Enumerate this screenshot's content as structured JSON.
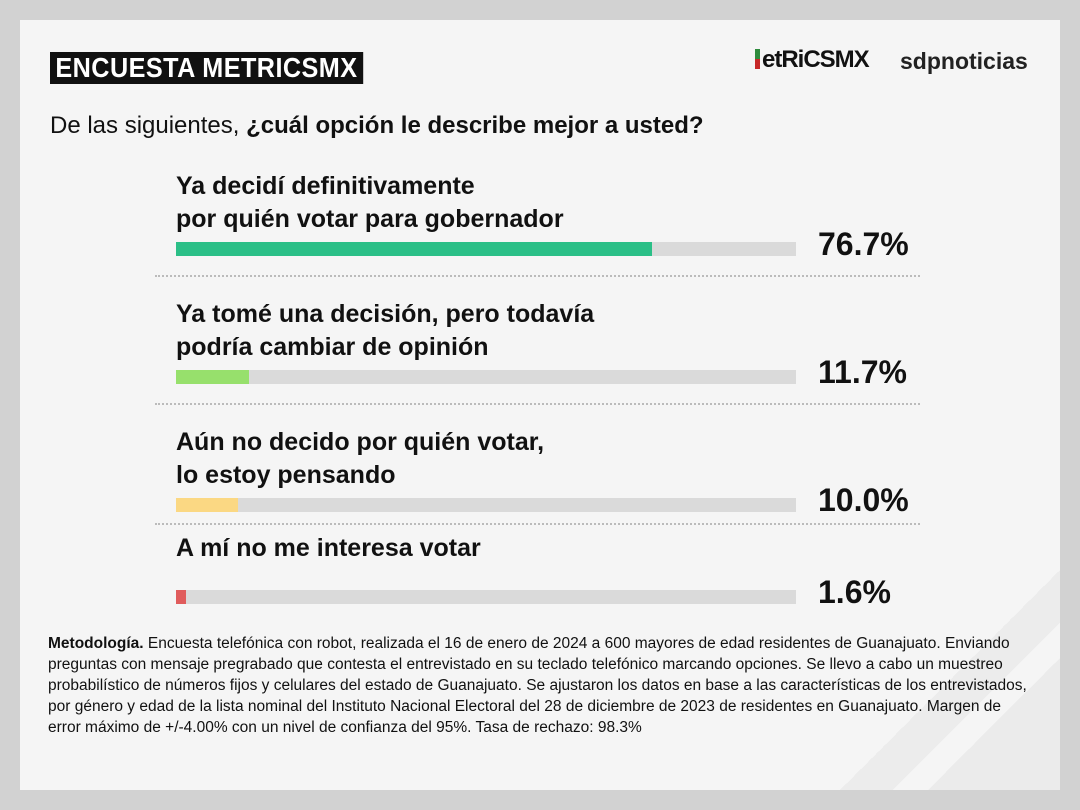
{
  "header": {
    "title": "ENCUESTA METRICSMX",
    "logos": [
      "MetRiCSMX",
      "sdpnoticias"
    ]
  },
  "question": {
    "prefix": "De las siguientes, ",
    "bold": "¿cuál opción le describe mejor a usted?"
  },
  "chart_data": {
    "type": "bar",
    "orientation": "horizontal",
    "xlim": [
      0,
      100
    ],
    "categories": [
      "Ya decidí definitivamente\npor quién votar para gobernador",
      "Ya tomé una decisión, pero todavía\npodría cambiar de opinión",
      "Aún no decido por quién votar,\nlo estoy pensando",
      "A mí no me interesa votar"
    ],
    "values": [
      76.7,
      11.7,
      10.0,
      1.6
    ],
    "labels": [
      "76.7%",
      "11.7%",
      "10.0%",
      "1.6%"
    ],
    "colors": [
      "#2bbf87",
      "#97e06c",
      "#fbd883",
      "#e05c5c"
    ],
    "track_color": "#dadada"
  },
  "methodology": {
    "bold": "Metodología.",
    "text": " Encuesta telefónica con robot, realizada el 16 de enero de 2024 a 600 mayores de edad residentes de Guanajuato. Enviando preguntas con mensaje pregrabado que contesta el entrevistado en su teclado telefónico marcando opciones. Se llevo a cabo un muestreo probabilístico de números fijos y celulares del estado de Guanajuato. Se ajustaron los datos en base a las características de los entrevistados, por género y edad de la lista nominal del Instituto Nacional Electoral del 28 de diciembre de 2023 de residentes en Guanajuato. Margen de error máximo de +/-4.00% con un nivel de confianza del 95%. Tasa de rechazo: 98.3%"
  }
}
